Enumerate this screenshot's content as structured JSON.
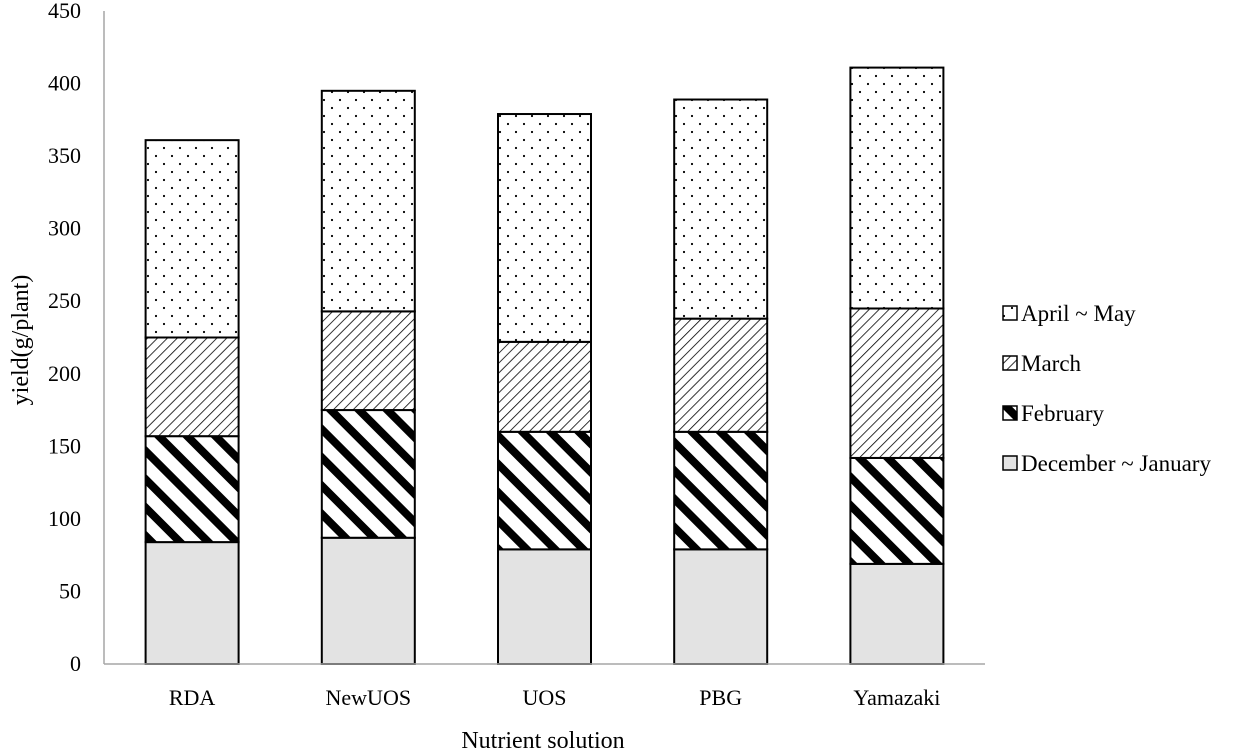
{
  "chart_data": {
    "type": "bar",
    "stacked": true,
    "categories": [
      "RDA",
      "NewUOS",
      "UOS",
      "PBG",
      "Yamazaki"
    ],
    "series": [
      {
        "name": "December ~ January",
        "values": [
          84,
          87,
          79,
          79,
          69
        ],
        "pattern": "solid-gray"
      },
      {
        "name": "February",
        "values": [
          73,
          88,
          81,
          81,
          73
        ],
        "pattern": "wide-diagonal-stripes"
      },
      {
        "name": "March",
        "values": [
          68,
          68,
          62,
          78,
          103
        ],
        "pattern": "fine-diagonal-hatch"
      },
      {
        "name": "April ~ May",
        "values": [
          136,
          152,
          157,
          151,
          166
        ],
        "pattern": "dots"
      }
    ],
    "xlabel": "Nutrient solution",
    "ylabel": "yield(g/plant)",
    "ylim": [
      0,
      450
    ],
    "yticks": [
      "0",
      "50",
      "100",
      "150",
      "200",
      "250",
      "300",
      "350",
      "400",
      "450"
    ],
    "grid": false,
    "legend_position": "right",
    "legend_order": [
      "April ~ May",
      "March",
      "February",
      "December ~ January"
    ]
  },
  "colors": {
    "axis": "#a6a6a6",
    "bar_outline": "#000000",
    "solid_fill": "#e3e3e3",
    "pattern_ink": "#000000",
    "background": "#ffffff"
  }
}
